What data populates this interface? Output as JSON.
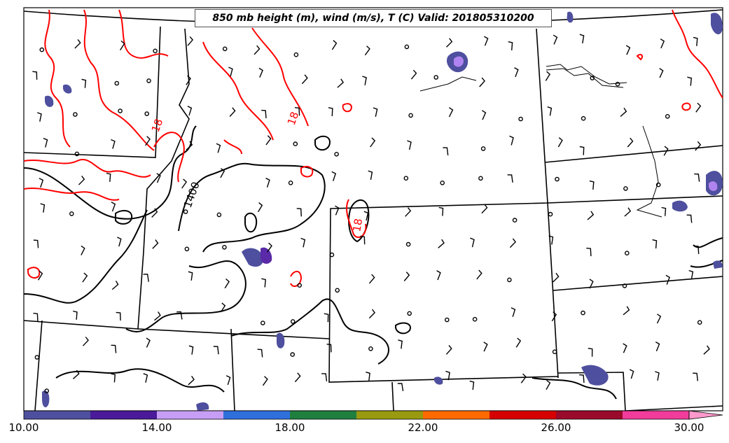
{
  "title": "850 mb height (m), wind (m/s), T (C) Valid: 201805310200",
  "contour_labels": {
    "height": "1400",
    "temp_a": "18",
    "temp_b": "18",
    "temp_c": "18"
  },
  "colorbar": {
    "ticks": [
      "10.00",
      "14.00",
      "18.00",
      "22.00",
      "26.00",
      "30.00"
    ],
    "colors": [
      "#4e4f9e",
      "#4a1a9a",
      "#c79ef5",
      "#2f6fdc",
      "#1f7f3f",
      "#9a9a10",
      "#ff6a00",
      "#d60000",
      "#9a0a2a",
      "#f13c9c",
      "#ff99cc"
    ]
  },
  "colors": {
    "height_contour": "#000000",
    "temp_contour": "#ff0000",
    "boundary": "#000000",
    "shading_purple": "#4e4f9e",
    "shading_violet": "#b084f0"
  }
}
